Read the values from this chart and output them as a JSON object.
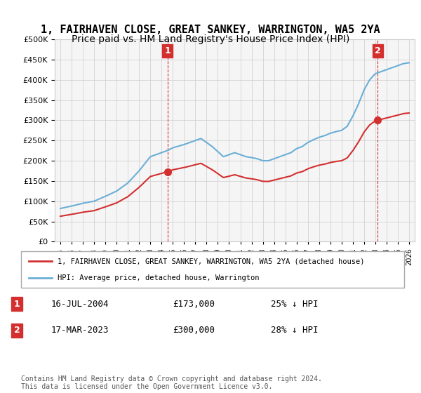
{
  "title": "1, FAIRHAVEN CLOSE, GREAT SANKEY, WARRINGTON, WA5 2YA",
  "subtitle": "Price paid vs. HM Land Registry's House Price Index (HPI)",
  "ylim": [
    0,
    500000
  ],
  "yticks": [
    0,
    50000,
    100000,
    150000,
    200000,
    250000,
    300000,
    350000,
    400000,
    450000,
    500000
  ],
  "xlim_min": 1994.5,
  "xlim_max": 2026.5,
  "background_color": "#ffffff",
  "grid_color": "#cccccc",
  "sale1_year": 2004.54,
  "sale1_price": 173000,
  "sale2_year": 2023.21,
  "sale2_price": 300000,
  "legend_line1": "1, FAIRHAVEN CLOSE, GREAT SANKEY, WARRINGTON, WA5 2YA (detached house)",
  "legend_line2": "HPI: Average price, detached house, Warrington",
  "table_row1": [
    "1",
    "16-JUL-2004",
    "£173,000",
    "25% ↓ HPI"
  ],
  "table_row2": [
    "2",
    "17-MAR-2023",
    "£300,000",
    "28% ↓ HPI"
  ],
  "footnote": "Contains HM Land Registry data © Crown copyright and database right 2024.\nThis data is licensed under the Open Government Licence v3.0.",
  "hpi_color": "#6baed6",
  "price_color": "#d32f2f",
  "title_fontsize": 11,
  "subtitle_fontsize": 10,
  "hpi_anchors_x": [
    1995.0,
    1996.0,
    1997.0,
    1998.0,
    1999.0,
    2000.0,
    2001.0,
    2002.0,
    2003.0,
    2004.0,
    2004.5,
    2005.0,
    2006.0,
    2007.0,
    2007.5,
    2008.5,
    2009.5,
    2010.0,
    2010.5,
    2011.0,
    2011.5,
    2012.0,
    2012.5,
    2013.0,
    2013.5,
    2014.0,
    2014.5,
    2015.0,
    2015.5,
    2016.0,
    2016.5,
    2017.0,
    2017.5,
    2018.0,
    2018.5,
    2019.0,
    2019.5,
    2020.0,
    2020.5,
    2021.0,
    2021.5,
    2022.0,
    2022.5,
    2023.0,
    2023.5,
    2024.0,
    2024.5,
    2025.0,
    2025.5,
    2026.0
  ],
  "hpi_anchors_y": [
    82000,
    88000,
    95000,
    100000,
    112000,
    125000,
    145000,
    175000,
    210000,
    220000,
    225000,
    232000,
    240000,
    250000,
    255000,
    235000,
    210000,
    215000,
    220000,
    215000,
    210000,
    208000,
    205000,
    200000,
    200000,
    205000,
    210000,
    215000,
    220000,
    230000,
    235000,
    245000,
    252000,
    258000,
    262000,
    268000,
    272000,
    275000,
    285000,
    310000,
    340000,
    375000,
    400000,
    415000,
    420000,
    425000,
    430000,
    435000,
    440000,
    442000
  ]
}
